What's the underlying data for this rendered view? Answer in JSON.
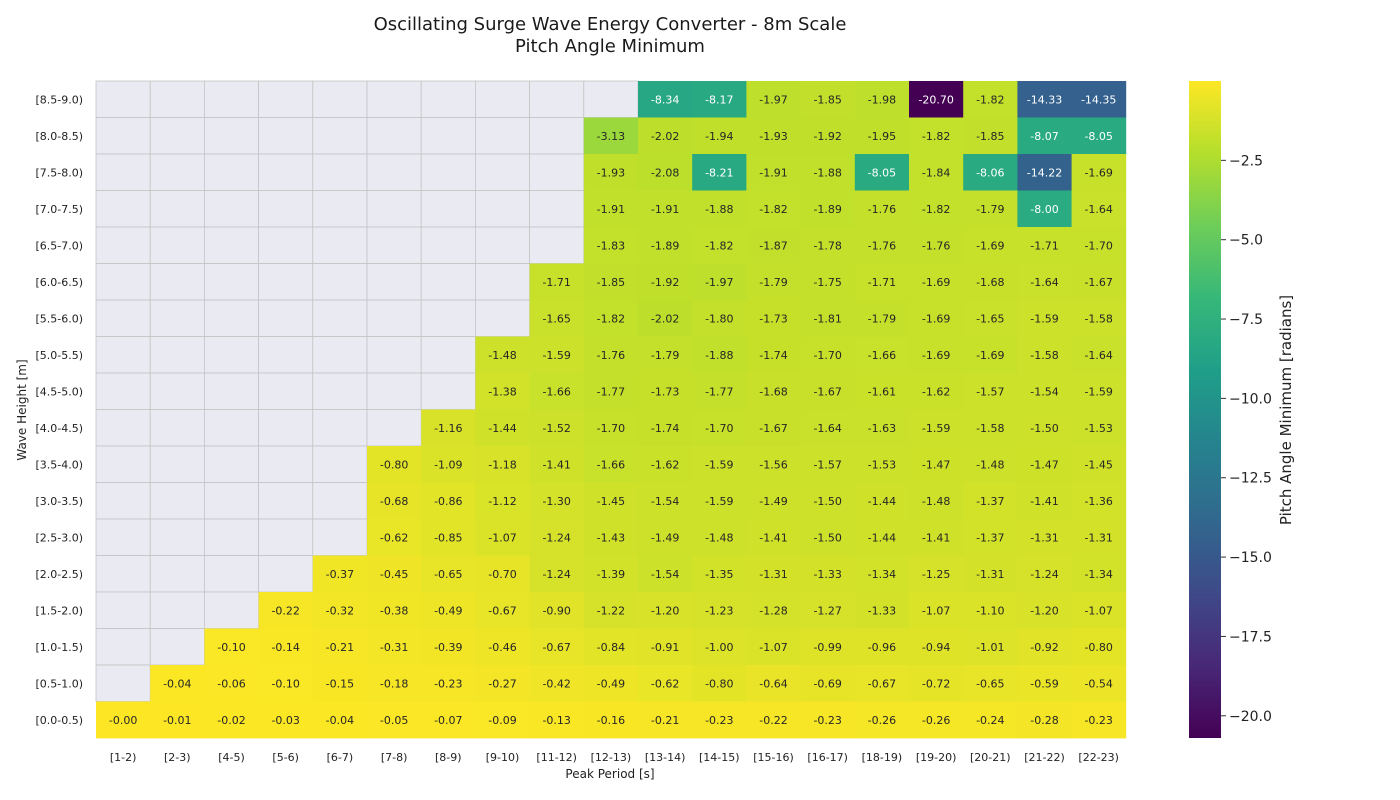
{
  "chart_data": {
    "type": "heatmap",
    "title": "Oscillating Surge Wave Energy Converter - 8m Scale",
    "subtitle": "Pitch Angle Minimum",
    "xlabel": "Peak Period [s]",
    "ylabel": "Wave Height [m]",
    "colorbar_label": "Pitch Angle Minimum [radians]",
    "colorscale": "viridis",
    "color_range": [
      -20.7,
      0.0
    ],
    "colorbar_ticks": [
      "-2.5",
      "-5.0",
      "-7.5",
      "-10.0",
      "-12.5",
      "-15.0",
      "-17.5",
      "-20.0"
    ],
    "missing_color": "#eaeaf2",
    "x_categories": [
      "[1-2)",
      "[2-3)",
      "[4-5)",
      "[5-6)",
      "[6-7)",
      "[7-8)",
      "[8-9)",
      "[9-10)",
      "[11-12)",
      "[12-13)",
      "[13-14)",
      "[14-15)",
      "[15-16)",
      "[16-17)",
      "[18-19)",
      "[19-20)",
      "[20-21)",
      "[21-22)",
      "[22-23)"
    ],
    "y_categories": [
      "[8.5-9.0)",
      "[8.0-8.5)",
      "[7.5-8.0)",
      "[7.0-7.5)",
      "[6.5-7.0)",
      "[6.0-6.5)",
      "[5.5-6.0)",
      "[5.0-5.5)",
      "[4.5-5.0)",
      "[4.0-4.5)",
      "[3.5-4.0)",
      "[3.0-3.5)",
      "[2.5-3.0)",
      "[2.0-2.5)",
      "[1.5-2.0)",
      "[1.0-1.5)",
      "[0.5-1.0)",
      "[0.0-0.5)"
    ],
    "values": [
      [
        null,
        null,
        null,
        null,
        null,
        null,
        null,
        null,
        null,
        null,
        "-8.34",
        "-8.17",
        "-1.97",
        "-1.85",
        "-1.98",
        "-20.70",
        "-1.82",
        "-14.33",
        "-14.35"
      ],
      [
        null,
        null,
        null,
        null,
        null,
        null,
        null,
        null,
        null,
        "-3.13",
        "-2.02",
        "-1.94",
        "-1.93",
        "-1.92",
        "-1.95",
        "-1.82",
        "-1.85",
        "-8.07",
        "-8.05"
      ],
      [
        null,
        null,
        null,
        null,
        null,
        null,
        null,
        null,
        null,
        "-1.93",
        "-2.08",
        "-8.21",
        "-1.91",
        "-1.88",
        "-8.05",
        "-1.84",
        "-8.06",
        "-14.22",
        "-1.69"
      ],
      [
        null,
        null,
        null,
        null,
        null,
        null,
        null,
        null,
        null,
        "-1.91",
        "-1.91",
        "-1.88",
        "-1.82",
        "-1.89",
        "-1.76",
        "-1.82",
        "-1.79",
        "-8.00",
        "-1.64"
      ],
      [
        null,
        null,
        null,
        null,
        null,
        null,
        null,
        null,
        null,
        "-1.83",
        "-1.89",
        "-1.82",
        "-1.87",
        "-1.78",
        "-1.76",
        "-1.76",
        "-1.69",
        "-1.71",
        "-1.70"
      ],
      [
        null,
        null,
        null,
        null,
        null,
        null,
        null,
        null,
        "-1.71",
        "-1.85",
        "-1.92",
        "-1.97",
        "-1.79",
        "-1.75",
        "-1.71",
        "-1.69",
        "-1.68",
        "-1.64",
        "-1.67"
      ],
      [
        null,
        null,
        null,
        null,
        null,
        null,
        null,
        null,
        "-1.65",
        "-1.82",
        "-2.02",
        "-1.80",
        "-1.73",
        "-1.81",
        "-1.79",
        "-1.69",
        "-1.65",
        "-1.59",
        "-1.58"
      ],
      [
        null,
        null,
        null,
        null,
        null,
        null,
        null,
        "-1.48",
        "-1.59",
        "-1.76",
        "-1.79",
        "-1.88",
        "-1.74",
        "-1.70",
        "-1.66",
        "-1.69",
        "-1.69",
        "-1.58",
        "-1.64"
      ],
      [
        null,
        null,
        null,
        null,
        null,
        null,
        null,
        "-1.38",
        "-1.66",
        "-1.77",
        "-1.73",
        "-1.77",
        "-1.68",
        "-1.67",
        "-1.61",
        "-1.62",
        "-1.57",
        "-1.54",
        "-1.59"
      ],
      [
        null,
        null,
        null,
        null,
        null,
        null,
        "-1.16",
        "-1.44",
        "-1.52",
        "-1.70",
        "-1.74",
        "-1.70",
        "-1.67",
        "-1.64",
        "-1.63",
        "-1.59",
        "-1.58",
        "-1.50",
        "-1.53"
      ],
      [
        null,
        null,
        null,
        null,
        null,
        "-0.80",
        "-1.09",
        "-1.18",
        "-1.41",
        "-1.66",
        "-1.62",
        "-1.59",
        "-1.56",
        "-1.57",
        "-1.53",
        "-1.47",
        "-1.48",
        "-1.47",
        "-1.45"
      ],
      [
        null,
        null,
        null,
        null,
        null,
        "-0.68",
        "-0.86",
        "-1.12",
        "-1.30",
        "-1.45",
        "-1.54",
        "-1.59",
        "-1.49",
        "-1.50",
        "-1.44",
        "-1.48",
        "-1.37",
        "-1.41",
        "-1.36"
      ],
      [
        null,
        null,
        null,
        null,
        null,
        "-0.62",
        "-0.85",
        "-1.07",
        "-1.24",
        "-1.43",
        "-1.49",
        "-1.48",
        "-1.41",
        "-1.50",
        "-1.44",
        "-1.41",
        "-1.37",
        "-1.31",
        "-1.31"
      ],
      [
        null,
        null,
        null,
        null,
        "-0.37",
        "-0.45",
        "-0.65",
        "-0.70",
        "-1.24",
        "-1.39",
        "-1.54",
        "-1.35",
        "-1.31",
        "-1.33",
        "-1.34",
        "-1.25",
        "-1.31",
        "-1.24",
        "-1.34"
      ],
      [
        null,
        null,
        null,
        "-0.22",
        "-0.32",
        "-0.38",
        "-0.49",
        "-0.67",
        "-0.90",
        "-1.22",
        "-1.20",
        "-1.23",
        "-1.28",
        "-1.27",
        "-1.33",
        "-1.07",
        "-1.10",
        "-1.20",
        "-1.07"
      ],
      [
        null,
        null,
        "-0.10",
        "-0.14",
        "-0.21",
        "-0.31",
        "-0.39",
        "-0.46",
        "-0.67",
        "-0.84",
        "-0.91",
        "-1.00",
        "-1.07",
        "-0.99",
        "-0.96",
        "-0.94",
        "-1.01",
        "-0.92",
        "-0.80"
      ],
      [
        null,
        "-0.04",
        "-0.06",
        "-0.10",
        "-0.15",
        "-0.18",
        "-0.23",
        "-0.27",
        "-0.42",
        "-0.49",
        "-0.62",
        "-0.80",
        "-0.64",
        "-0.69",
        "-0.67",
        "-0.72",
        "-0.65",
        "-0.59",
        "-0.54"
      ],
      [
        "-0.00",
        "-0.01",
        "-0.02",
        "-0.03",
        "-0.04",
        "-0.05",
        "-0.07",
        "-0.09",
        "-0.13",
        "-0.16",
        "-0.21",
        "-0.23",
        "-0.22",
        "-0.23",
        "-0.26",
        "-0.26",
        "-0.24",
        "-0.28",
        "-0.23"
      ]
    ]
  }
}
